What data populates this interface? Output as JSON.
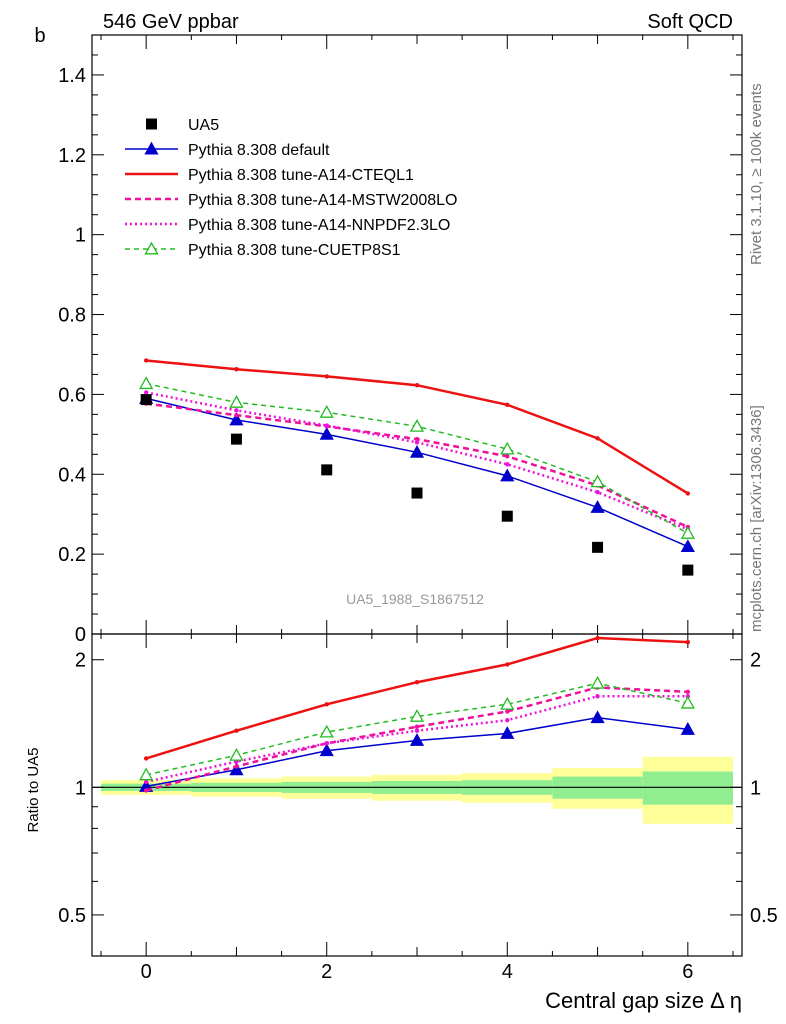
{
  "header": {
    "left": "546 GeV ppbar",
    "right": "Soft QCD"
  },
  "side_text": {
    "top": "Rivet 3.1.10, ≥ 100k events",
    "bottom": "mcplots.cern.ch [arXiv:1306.3436]"
  },
  "colors": {
    "data": "#000000",
    "default": "#0000cc",
    "cteql1": "#ee1111",
    "mstw": "#ee1199",
    "nnpdf": "#ee11dd",
    "cuetp8s1": "#22bb22",
    "band_green": "#90ee90",
    "band_yellow": "#ffff99"
  },
  "chart_data": [
    {
      "type": "scatter",
      "title": "",
      "watermark": "UA5_1988_S1867512",
      "ylabel": "b",
      "xlabel": "Central gap size Δ η",
      "xlim": [
        -0.6,
        6.6
      ],
      "ylim": [
        0,
        1.5
      ],
      "yticks": [
        "0",
        "0.2",
        "0.4",
        "0.6",
        "0.8",
        "1",
        "1.2",
        "1.4"
      ],
      "legend_position": "top-left",
      "x": [
        0,
        1,
        2,
        3,
        4,
        5,
        6
      ],
      "series": [
        {
          "name": "UA5",
          "style": "data",
          "values": [
            0.587,
            0.488,
            0.411,
            0.353,
            0.295,
            0.217,
            0.16
          ]
        },
        {
          "name": "Pythia 8.308 default",
          "style": "default",
          "values": [
            0.59,
            0.536,
            0.5,
            0.455,
            0.396,
            0.317,
            0.219
          ]
        },
        {
          "name": "Pythia 8.308 tune-A14-CTEQL1",
          "style": "cteql1",
          "values": [
            0.685,
            0.663,
            0.645,
            0.623,
            0.574,
            0.49,
            0.352
          ]
        },
        {
          "name": "Pythia 8.308 tune-A14-MSTW2008LO",
          "style": "mstw",
          "values": [
            0.577,
            0.548,
            0.52,
            0.488,
            0.445,
            0.372,
            0.268
          ]
        },
        {
          "name": "Pythia 8.308 tune-A14-NNPDF2.3LO",
          "style": "nnpdf",
          "values": [
            0.605,
            0.56,
            0.522,
            0.48,
            0.425,
            0.355,
            0.262
          ]
        },
        {
          "name": "Pythia 8.308 tune-CUETP8S1",
          "style": "cuetp8s1",
          "values": [
            0.627,
            0.58,
            0.555,
            0.52,
            0.463,
            0.381,
            0.252
          ]
        }
      ]
    },
    {
      "type": "line",
      "ylabel": "Ratio to UA5",
      "xlabel": "Central gap size Δ η",
      "xticks": [
        "0",
        "2",
        "4",
        "6"
      ],
      "yticks": [
        "0.5",
        "1",
        "2"
      ],
      "ylim": [
        0.4,
        2.3
      ],
      "yscale": "log",
      "x": [
        0,
        1,
        2,
        3,
        4,
        5,
        6
      ],
      "bands": {
        "green_halfwidth": [
          0.02,
          0.025,
          0.03,
          0.035,
          0.04,
          0.06,
          0.09
        ],
        "yellow_halfwidth": [
          0.04,
          0.05,
          0.06,
          0.07,
          0.08,
          0.11,
          0.18
        ]
      },
      "series": [
        {
          "name": "Pythia 8.308 default",
          "style": "default",
          "values": [
            1.005,
            1.1,
            1.22,
            1.29,
            1.34,
            1.46,
            1.37
          ]
        },
        {
          "name": "Pythia 8.308 tune-A14-CTEQL1",
          "style": "cteql1",
          "values": [
            1.17,
            1.36,
            1.57,
            1.77,
            1.95,
            2.25,
            2.2
          ]
        },
        {
          "name": "Pythia 8.308 tune-A14-MSTW2008LO",
          "style": "mstw",
          "values": [
            0.983,
            1.12,
            1.27,
            1.39,
            1.51,
            1.72,
            1.68
          ]
        },
        {
          "name": "Pythia 8.308 tune-A14-NNPDF2.3LO",
          "style": "nnpdf",
          "values": [
            1.03,
            1.15,
            1.27,
            1.36,
            1.44,
            1.64,
            1.64
          ]
        },
        {
          "name": "Pythia 8.308 tune-CUETP8S1",
          "style": "cuetp8s1",
          "values": [
            1.07,
            1.19,
            1.35,
            1.47,
            1.57,
            1.76,
            1.58
          ]
        }
      ]
    }
  ]
}
